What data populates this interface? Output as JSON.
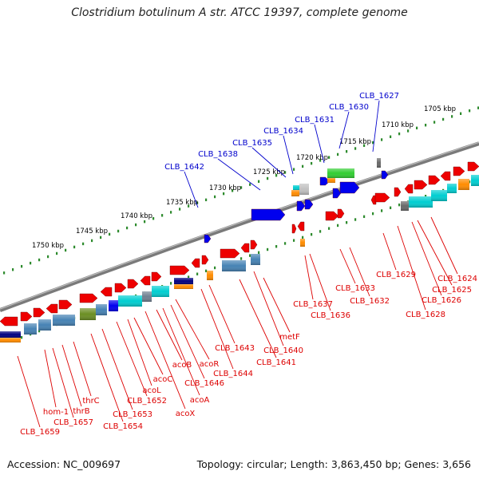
{
  "title": "Clostridium botulinum A str. ATCC 19397, complete genome",
  "footer": {
    "accession": "Accession: NC_009697",
    "summary": "Topology: circular; Length: 3,863,450 bp; Genes: 3,656"
  },
  "colors": {
    "backbone": "#7a7a7a",
    "ruler_dots": "#2e8b2e",
    "gene_label_red": "#dd0000",
    "gene_label_blue": "#0000cc",
    "cds_forward": "#ee0000",
    "cds_reverse": "#0000ee"
  },
  "ruler_labels": [
    "1705 kbp",
    "1710 kbp",
    "1715 kbp",
    "1720 kbp",
    "1725 kbp",
    "1730 kbp",
    "1735 kbp",
    "1740 kbp",
    "1745 kbp",
    "1750 kbp"
  ],
  "gene_labels_top": [
    "CLB_1627",
    "CLB_1630",
    "CLB_1631",
    "CLB_1634",
    "CLB_1635",
    "CLB_1638",
    "CLB_1642"
  ],
  "gene_labels_bottom": [
    "CLB_1624",
    "CLB_1625",
    "CLB_1626",
    "CLB_1628",
    "CLB_1629",
    "CLB_1632",
    "CLB_1633",
    "CLB_1636",
    "CLB_1637",
    "metF",
    "CLB_1640",
    "CLB_1641",
    "CLB_1643",
    "CLB_1644",
    "acoR",
    "CLB_1646",
    "acoA",
    "acoB",
    "acoX",
    "acoC",
    "CLB_1652",
    "acoL",
    "CLB_1653",
    "CLB_1654",
    "thrC",
    "thrB",
    "CLB_1657",
    "hom-1",
    "CLB_1659"
  ]
}
